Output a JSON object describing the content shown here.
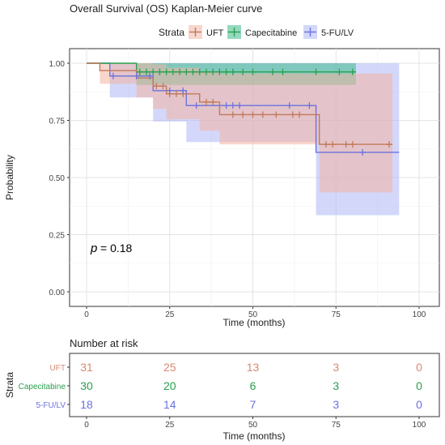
{
  "chart_data": [
    {
      "type": "line",
      "subtype": "kaplan-meier",
      "title": "Overall Survival (OS) Kaplan-Meier curve",
      "xlabel": "Time (months)",
      "ylabel": "Probability",
      "xlim": [
        0,
        100
      ],
      "ylim": [
        0,
        1
      ],
      "xticks": [
        "0",
        "25",
        "50",
        "75",
        "100"
      ],
      "yticks": [
        "0.00",
        "0.25",
        "0.50",
        "0.75",
        "1.00"
      ],
      "legend_title": "Strata",
      "legend_position": "top",
      "grid": true,
      "annotation": {
        "p_label": "p",
        "p_value": "= 0.18"
      },
      "series": [
        {
          "name": "UFT",
          "color": "#c2795a",
          "fill": "#f3b4a2",
          "steps": [
            [
              0,
              1.0
            ],
            [
              4,
              0.968
            ],
            [
              15,
              0.935
            ],
            [
              20,
              0.9
            ],
            [
              24,
              0.866
            ],
            [
              34,
              0.83
            ],
            [
              40,
              0.775
            ],
            [
              70,
              0.645
            ],
            [
              92,
              0.645
            ]
          ],
          "ci": [
            [
              0,
              1.0,
              1.0
            ],
            [
              4,
              0.91,
              1.0
            ],
            [
              15,
              0.85,
              1.0
            ],
            [
              20,
              0.8,
              0.995
            ],
            [
              24,
              0.755,
              0.98
            ],
            [
              34,
              0.705,
              0.96
            ],
            [
              40,
              0.645,
              0.955
            ],
            [
              70,
              0.435,
              0.955
            ],
            [
              92,
              0.435,
              0.955
            ]
          ],
          "censor": [
            [
              21,
              0.9
            ],
            [
              23,
              0.9
            ],
            [
              25,
              0.866
            ],
            [
              27,
              0.866
            ],
            [
              29,
              0.866
            ],
            [
              36,
              0.83
            ],
            [
              38,
              0.83
            ],
            [
              44,
              0.775
            ],
            [
              47,
              0.775
            ],
            [
              50,
              0.775
            ],
            [
              53,
              0.775
            ],
            [
              57,
              0.775
            ],
            [
              62,
              0.775
            ],
            [
              64,
              0.775
            ],
            [
              72,
              0.645
            ],
            [
              74,
              0.645
            ],
            [
              78,
              0.645
            ],
            [
              80,
              0.645
            ],
            [
              91,
              0.645
            ]
          ]
        },
        {
          "name": "Capecitabine",
          "color": "#2aa04f",
          "fill": "#3dbb8a",
          "steps": [
            [
              0,
              1.0
            ],
            [
              15,
              0.962
            ],
            [
              81,
              0.962
            ]
          ],
          "ci": [
            [
              0,
              1.0,
              1.0
            ],
            [
              15,
              0.905,
              1.0
            ],
            [
              81,
              0.905,
              1.0
            ]
          ],
          "censor": [
            [
              16,
              0.962
            ],
            [
              18,
              0.962
            ],
            [
              20,
              0.962
            ],
            [
              22,
              0.962
            ],
            [
              24,
              0.962
            ],
            [
              26,
              0.962
            ],
            [
              28,
              0.962
            ],
            [
              30,
              0.962
            ],
            [
              32,
              0.962
            ],
            [
              34,
              0.962
            ],
            [
              36,
              0.962
            ],
            [
              38,
              0.962
            ],
            [
              40,
              0.962
            ],
            [
              42,
              0.962
            ],
            [
              44,
              0.962
            ],
            [
              47,
              0.962
            ],
            [
              50,
              0.962
            ],
            [
              56,
              0.962
            ],
            [
              59,
              0.962
            ],
            [
              69,
              0.962
            ],
            [
              76,
              0.962
            ],
            [
              80,
              0.962
            ]
          ]
        },
        {
          "name": "5-FU/LV",
          "color": "#6b72e0",
          "fill": "#aeb8f5",
          "steps": [
            [
              0,
              1.0
            ],
            [
              7,
              0.944
            ],
            [
              20,
              0.88
            ],
            [
              30,
              0.815
            ],
            [
              69,
              0.61
            ],
            [
              94,
              0.61
            ]
          ],
          "ci": [
            [
              0,
              1.0,
              1.0
            ],
            [
              7,
              0.85,
              1.0
            ],
            [
              20,
              0.745,
              1.0
            ],
            [
              30,
              0.655,
              1.0
            ],
            [
              69,
              0.335,
              1.0
            ],
            [
              94,
              0.335,
              1.0
            ]
          ],
          "censor": [
            [
              8,
              0.944
            ],
            [
              15,
              0.944
            ],
            [
              19,
              0.944
            ],
            [
              25,
              0.88
            ],
            [
              29,
              0.88
            ],
            [
              33,
              0.815
            ],
            [
              42,
              0.815
            ],
            [
              44,
              0.815
            ],
            [
              46,
              0.815
            ],
            [
              61,
              0.815
            ],
            [
              67,
              0.815
            ],
            [
              83,
              0.61
            ]
          ]
        }
      ]
    },
    {
      "type": "table",
      "title": "Number at risk",
      "ylabel": "Strata",
      "xlabel": "Time (months)",
      "xticks": [
        "0",
        "25",
        "50",
        "75",
        "100"
      ],
      "rows": [
        {
          "name": "UFT",
          "color": "#d48a73",
          "values": [
            "31",
            "25",
            "13",
            "3",
            "0"
          ]
        },
        {
          "name": "Capecitabine",
          "color": "#2aa04f",
          "values": [
            "30",
            "20",
            "6",
            "3",
            "0"
          ]
        },
        {
          "name": "5-FU/LV",
          "color": "#6b72e0",
          "values": [
            "18",
            "14",
            "7",
            "3",
            "0"
          ]
        }
      ]
    }
  ]
}
